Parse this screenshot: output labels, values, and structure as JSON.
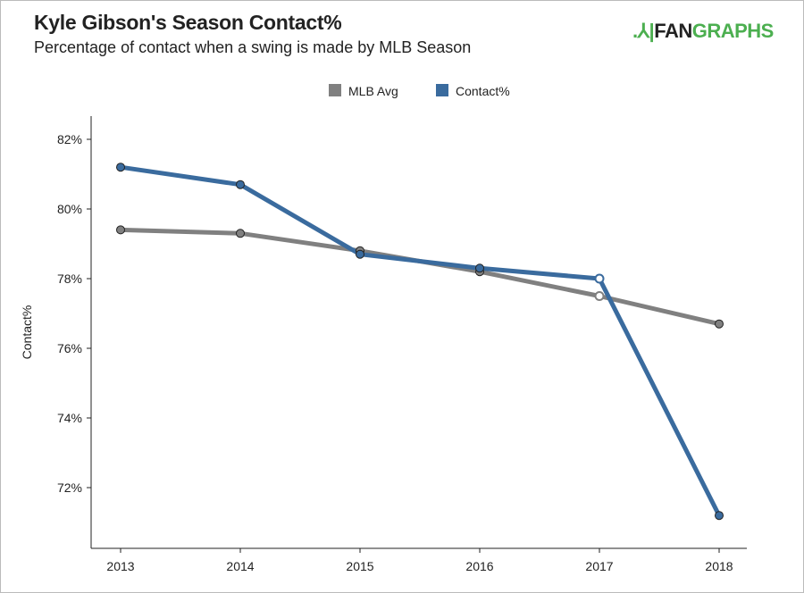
{
  "header": {
    "title": "Kyle Gibson's Season Contact%",
    "subtitle": "Percentage of contact when a swing is made by MLB Season",
    "logo_text_dark": "FAN",
    "logo_text_green": "GRAPHS"
  },
  "chart_data": {
    "type": "line",
    "title": "Kyle Gibson's Season Contact%",
    "subtitle": "Percentage of contact when a swing is made by MLB Season",
    "xlabel": "",
    "ylabel": "Contact%",
    "x": [
      "2013",
      "2014",
      "2015",
      "2016",
      "2017",
      "2018"
    ],
    "yticks": [
      "72%",
      "74%",
      "76%",
      "78%",
      "80%",
      "82%"
    ],
    "ytick_values": [
      72,
      74,
      76,
      78,
      80,
      82
    ],
    "ylim": [
      70.5,
      82
    ],
    "grid": false,
    "legend_position": "top-center",
    "series": [
      {
        "name": "MLB Avg",
        "color": "#808080",
        "values": [
          79.4,
          79.3,
          78.8,
          78.2,
          77.5,
          76.7
        ]
      },
      {
        "name": "Contact%",
        "color": "#3a6b9e",
        "values": [
          81.2,
          80.7,
          78.7,
          78.3,
          78.0,
          71.2
        ]
      }
    ],
    "highlight_index": 4
  }
}
